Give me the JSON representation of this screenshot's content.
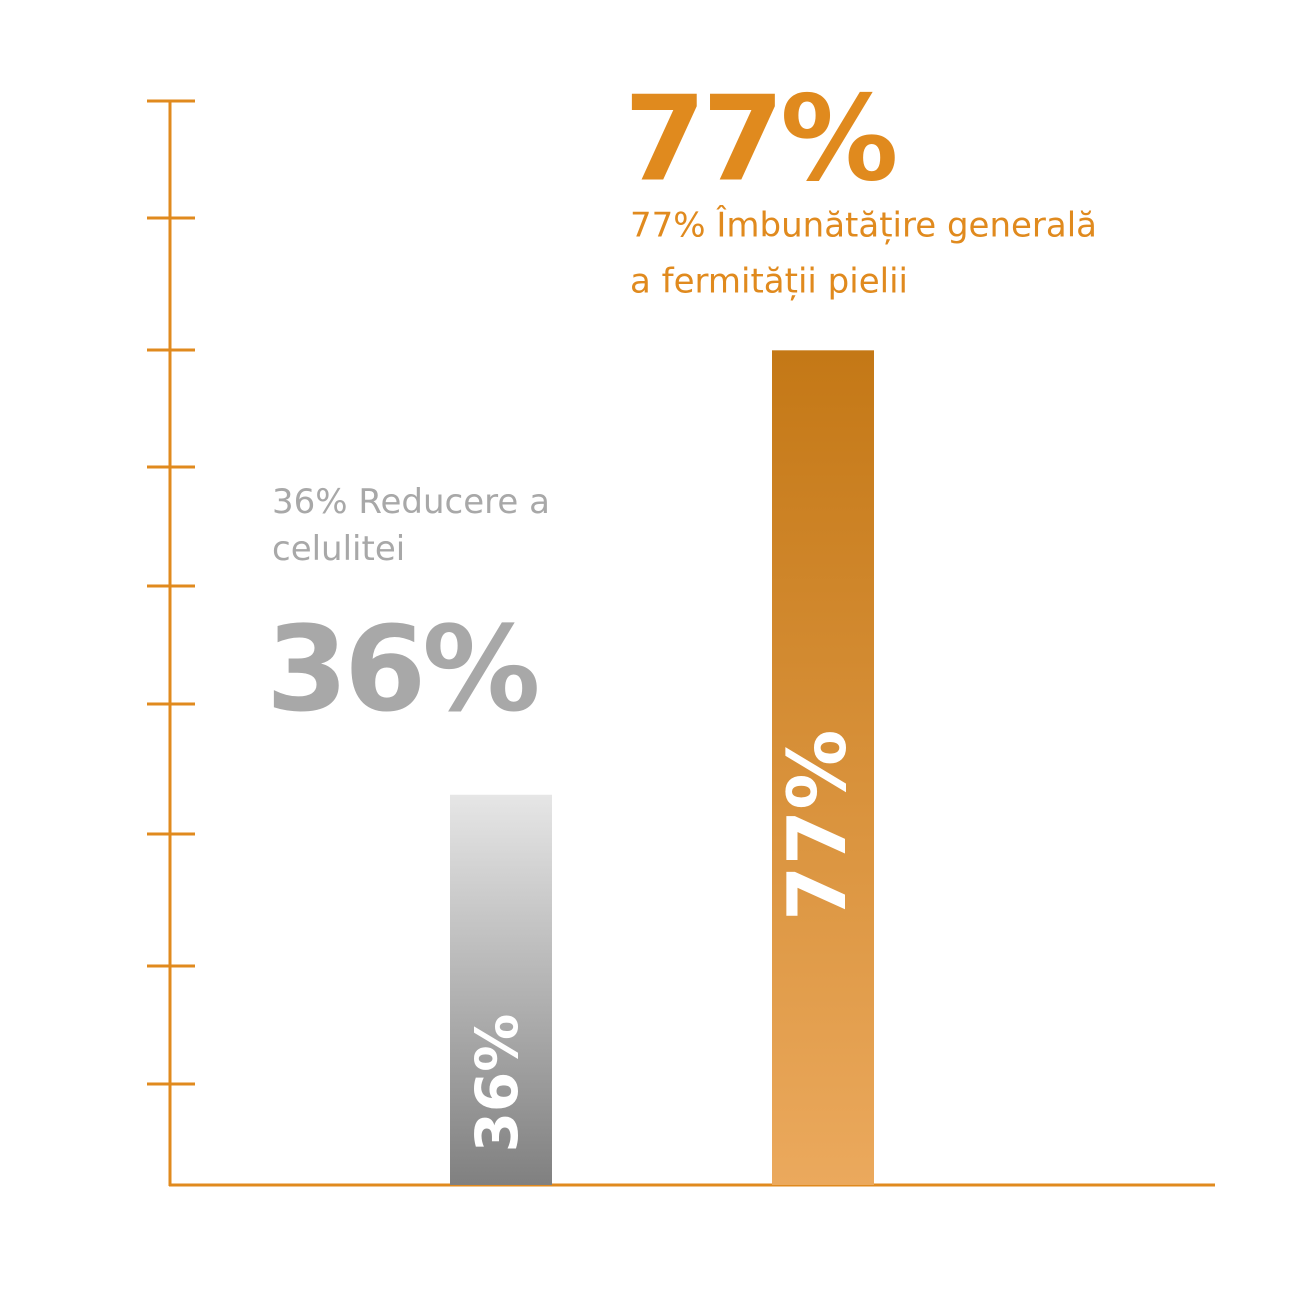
{
  "chart_data": {
    "type": "bar",
    "categories": [
      null,
      null
    ],
    "values": [
      36,
      77
    ],
    "value_labels": [
      "36%",
      "77%"
    ],
    "descriptions": [
      [
        "36% Reducere a",
        "celulitei"
      ],
      [
        "77% Îmbunătățire generală",
        "a fermității pielii"
      ]
    ],
    "colors": [
      [
        "#e6e6e6",
        "#808080"
      ],
      [
        "#c47816",
        "#eba95d"
      ]
    ],
    "label_colors": [
      "#a8a8a8",
      "#e08a1e"
    ],
    "ylim": [
      0,
      100
    ]
  }
}
